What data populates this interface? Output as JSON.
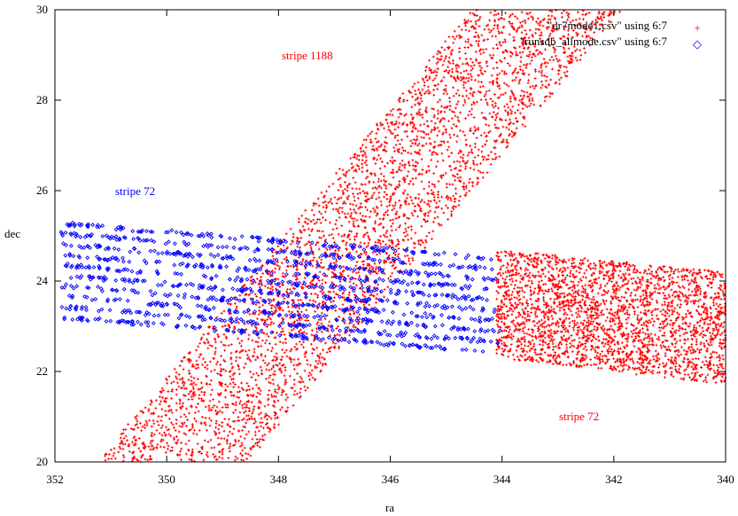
{
  "chart_data": {
    "type": "scatter",
    "xlabel": "ra",
    "ylabel": "dec",
    "xlim": [
      352,
      340
    ],
    "ylim": [
      20,
      30
    ],
    "x_ticks": [
      "352",
      "350",
      "348",
      "346",
      "344",
      "342",
      "340"
    ],
    "y_ticks": [
      "20",
      "22",
      "24",
      "26",
      "28",
      "30"
    ],
    "grid": false,
    "legend_position": "top-right",
    "legend": [
      {
        "label": "\"dr7mode1.csv\" using 6:7",
        "color": "#ff0000",
        "marker": "plus"
      },
      {
        "label": "\"runsdb_allmode.csv\" using 6:7",
        "color": "#0000ff",
        "marker": "diamond"
      }
    ],
    "annotations": [
      {
        "text": "stripe 1188",
        "x": 347.5,
        "y": 29.0,
        "color": "#ff0000"
      },
      {
        "text": "stripe 72",
        "x": 350.7,
        "y": 26.0,
        "color": "#0000ff"
      },
      {
        "text": "stripe 72",
        "x": 342.4,
        "y": 21.0,
        "color": "#ff0000"
      }
    ],
    "series": [
      {
        "name": "\"dr7mode1.csv\" using 6:7",
        "color": "#ff0000",
        "marker": "plus",
        "regions": [
          {
            "shape": "band",
            "axis": "dec",
            "from": [
              349.9,
              20.0
            ],
            "to": [
              343.2,
              30.0
            ],
            "width_ra": 2.7,
            "points": 3600
          },
          {
            "shape": "box",
            "ra": [
              344.1,
              340.0
            ],
            "dec_left": [
              22.3,
              24.7
            ],
            "dec_right": [
              21.7,
              24.2
            ],
            "points": 2600
          }
        ]
      },
      {
        "name": "\"runsdb_allmode.csv\" using 6:7",
        "color": "#0000ff",
        "marker": "diamond",
        "regions": [
          {
            "shape": "stripes",
            "ra": [
              352.0,
              344.0
            ],
            "dec_left": [
              23.1,
              25.4
            ],
            "dec_right": [
              22.3,
              24.6
            ],
            "tracks": 10,
            "points": 1500
          }
        ]
      }
    ]
  }
}
